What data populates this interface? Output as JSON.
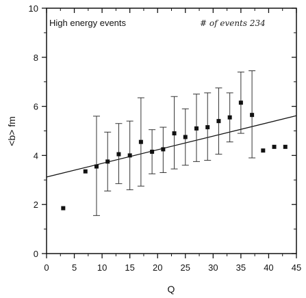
{
  "chart_data": {
    "type": "scatter",
    "title": "High energy events",
    "annotation": "# of events 234",
    "xlabel": "Q",
    "ylabel": "<b> fm",
    "xlim": [
      0,
      45
    ],
    "ylim": [
      0,
      10
    ],
    "x_ticks": [
      0,
      5,
      10,
      15,
      20,
      25,
      30,
      35,
      40,
      45
    ],
    "y_ticks": [
      0,
      2,
      4,
      6,
      8,
      10
    ],
    "grid": false,
    "legend": "none",
    "marker": "square",
    "marker_color": "#111111",
    "points": [
      {
        "x": 3,
        "y": 1.85
      },
      {
        "x": 7,
        "y": 3.35
      },
      {
        "x": 9,
        "y": 3.55,
        "err_lo": 1.55,
        "err_hi": 5.6
      },
      {
        "x": 11,
        "y": 3.75,
        "err_lo": 2.55,
        "err_hi": 4.95
      },
      {
        "x": 13,
        "y": 4.05,
        "err_lo": 2.85,
        "err_hi": 5.3
      },
      {
        "x": 15,
        "y": 4.0,
        "err_lo": 2.6,
        "err_hi": 5.4
      },
      {
        "x": 17,
        "y": 4.55,
        "err_lo": 2.75,
        "err_hi": 6.35
      },
      {
        "x": 19,
        "y": 4.15,
        "err_lo": 3.25,
        "err_hi": 5.05
      },
      {
        "x": 21,
        "y": 4.25,
        "err_lo": 3.3,
        "err_hi": 5.15
      },
      {
        "x": 23,
        "y": 4.9,
        "err_lo": 3.45,
        "err_hi": 6.4
      },
      {
        "x": 25,
        "y": 4.75,
        "err_lo": 3.6,
        "err_hi": 5.9
      },
      {
        "x": 27,
        "y": 5.1,
        "err_lo": 3.75,
        "err_hi": 6.5
      },
      {
        "x": 29,
        "y": 5.15,
        "err_lo": 3.8,
        "err_hi": 6.55
      },
      {
        "x": 31,
        "y": 5.4,
        "err_lo": 4.05,
        "err_hi": 6.75
      },
      {
        "x": 33,
        "y": 5.55,
        "err_lo": 4.55,
        "err_hi": 6.55
      },
      {
        "x": 35,
        "y": 6.15,
        "err_lo": 4.9,
        "err_hi": 7.4
      },
      {
        "x": 37,
        "y": 5.65,
        "err_lo": 3.9,
        "err_hi": 7.45
      },
      {
        "x": 39,
        "y": 4.2
      },
      {
        "x": 41,
        "y": 4.35
      },
      {
        "x": 43,
        "y": 4.35
      }
    ],
    "fit_line": {
      "x": [
        0,
        45
      ],
      "y": [
        3.12,
        5.62
      ]
    }
  }
}
